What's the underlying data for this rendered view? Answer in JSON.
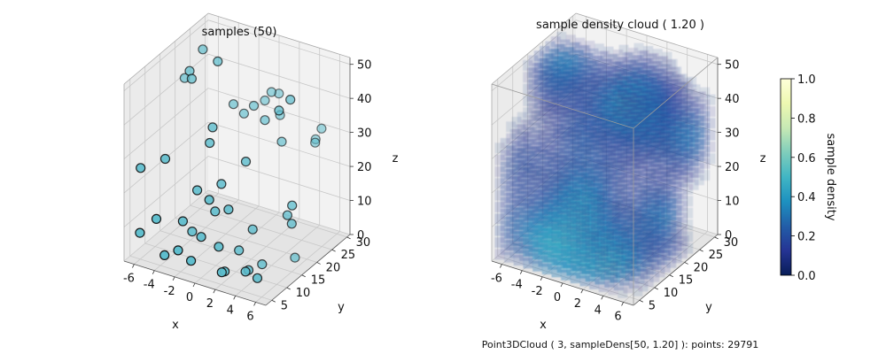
{
  "footer": "Point3DCloud ( 3, sampleDens[50, 1.20] ):  points: 29791",
  "colors": {
    "marker_fill": "#5bbccc",
    "marker_edge": "#111111",
    "pane_back": "#f2f2f2",
    "pane_side": "#ebebeb",
    "pane_floor": "#e4e4e4",
    "grid": "#c8c8c8",
    "edge": "#aaaaaa"
  },
  "chart_data": [
    {
      "type": "scatter",
      "subtype": "3d",
      "title": "samples (50)",
      "xlabel": "x",
      "ylabel": "y",
      "zlabel": "z",
      "xlim": [
        -7,
        7
      ],
      "ylim": [
        3,
        31
      ],
      "zlim": [
        0,
        52
      ],
      "xticks": [
        "-6",
        "-4",
        "-2",
        "0",
        "2",
        "4",
        "6"
      ],
      "yticks": [
        "5",
        "10",
        "15",
        "20",
        "25",
        "30"
      ],
      "zticks": [
        "0",
        "10",
        "20",
        "30",
        "40",
        "50"
      ],
      "grid": true,
      "points": [
        [
          -6.0,
          4.9,
          7.8
        ],
        [
          -6.3,
          20.8,
          41.2
        ],
        [
          -4.3,
          20.1,
          52.0
        ],
        [
          -6.7,
          7.5,
          24.3
        ],
        [
          -4.8,
          9.3,
          27.4
        ],
        [
          -4.5,
          17.1,
          45.4
        ],
        [
          -4.8,
          17.4,
          47.2
        ],
        [
          -1.9,
          17.0,
          53.0
        ],
        [
          -1.4,
          13.6,
          36.6
        ],
        [
          -1.3,
          12.3,
          33.1
        ],
        [
          1.5,
          25.9,
          40.1
        ],
        [
          0.5,
          24.6,
          38.1
        ],
        [
          -1.6,
          21.2,
          37.6
        ],
        [
          0.3,
          21.6,
          38.6
        ],
        [
          2.0,
          13.2,
          30.0
        ],
        [
          3.2,
          21.1,
          31.1
        ],
        [
          2.2,
          23.9,
          35.9
        ],
        [
          5.4,
          24.8,
          30.1
        ],
        [
          5.0,
          26.3,
          29.6
        ],
        [
          5.5,
          26.6,
          33.0
        ],
        [
          1.6,
          20.9,
          36.1
        ],
        [
          1.3,
          24.1,
          41.7
        ],
        [
          5.0,
          17.9,
          47.5
        ],
        [
          4.3,
          16.5,
          44.7
        ],
        [
          -0.7,
          21.7,
          35.3
        ],
        [
          -4.4,
          5.0,
          13.3
        ],
        [
          -2.5,
          7.4,
          12.6
        ],
        [
          -1.7,
          9.5,
          20.9
        ],
        [
          -0.1,
          8.1,
          20.6
        ],
        [
          1.0,
          10.8,
          16.8
        ],
        [
          -0.2,
          10.4,
          15.4
        ],
        [
          0.0,
          11.8,
          22.6
        ],
        [
          5.8,
          15.8,
          18.7
        ],
        [
          5.1,
          16.6,
          14.6
        ],
        [
          5.7,
          16.0,
          13.1
        ],
        [
          2.5,
          13.8,
          10.1
        ],
        [
          -1.9,
          3.8,
          7.3
        ],
        [
          -0.8,
          7.8,
          9.3
        ],
        [
          -2.2,
          9.5,
          8.3
        ],
        [
          -3.3,
          4.0,
          4.4
        ],
        [
          -0.8,
          4.4,
          4.8
        ],
        [
          0.9,
          7.9,
          7.9
        ],
        [
          1.5,
          12.6,
          3.9
        ],
        [
          2.8,
          10.4,
          0.5
        ],
        [
          2.8,
          11.4,
          0.2
        ],
        [
          3.1,
          14.9,
          -0.4
        ],
        [
          4.3,
          9.3,
          0.8
        ],
        [
          5.1,
          19.1,
          0.3
        ],
        [
          1.7,
          6.2,
          2.4
        ],
        [
          1.4,
          8.2,
          0.9
        ]
      ]
    },
    {
      "type": "scatter",
      "subtype": "3d-density",
      "title": "sample density cloud ( 1.20 )",
      "xlabel": "x",
      "ylabel": "y",
      "zlabel": "z",
      "xlim": [
        -7,
        7
      ],
      "ylim": [
        3,
        31
      ],
      "zlim": [
        0,
        52
      ],
      "xticks": [
        "-6",
        "-4",
        "-2",
        "0",
        "2",
        "4",
        "6"
      ],
      "yticks": [
        "5",
        "10",
        "15",
        "20",
        "25",
        "30"
      ],
      "zticks": [
        "0",
        "10",
        "20",
        "30",
        "40",
        "50"
      ],
      "grid": true,
      "colormap": "YlGnBu_r",
      "colorbar": {
        "label": "sample density",
        "range": [
          0,
          1
        ],
        "ticks": [
          "0.0",
          "0.2",
          "0.4",
          "0.6",
          "0.8",
          "1.0"
        ],
        "stops": [
          "#081d58",
          "#253494",
          "#225ea8",
          "#1d91c0",
          "#41b6c4",
          "#7fcdbb",
          "#c7e9b4",
          "#edf8b1",
          "#ffffd9"
        ]
      }
    }
  ]
}
